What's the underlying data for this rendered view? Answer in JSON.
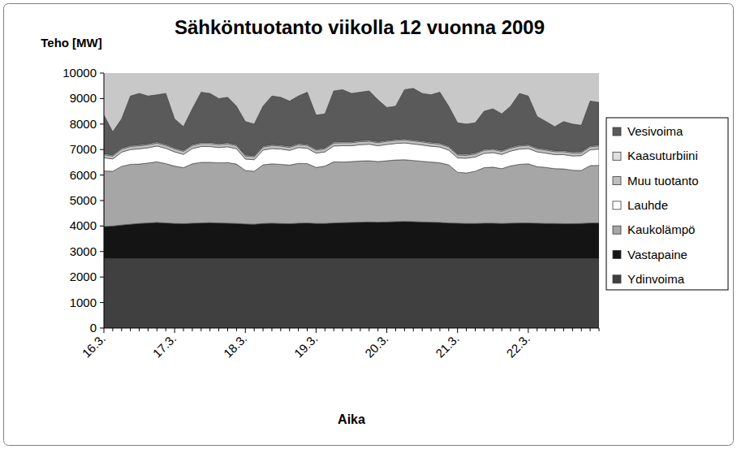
{
  "chart_data": {
    "type": "area",
    "title": "Sähköntuotanto viikolla 12 vuonna 2009",
    "y_label": "Teho [MW]",
    "x_label": "Aika",
    "stacked": true,
    "grid": false,
    "legend": "right",
    "categories": [
      "16.3.",
      null,
      null,
      null,
      null,
      null,
      null,
      null,
      "17.3.",
      null,
      null,
      null,
      null,
      null,
      null,
      null,
      "18.3.",
      null,
      null,
      null,
      null,
      null,
      null,
      null,
      "19.3.",
      null,
      null,
      null,
      null,
      null,
      null,
      null,
      "20.3.",
      null,
      null,
      null,
      null,
      null,
      null,
      null,
      "21.3.",
      null,
      null,
      null,
      null,
      null,
      null,
      null,
      "22.3.",
      null,
      null,
      null,
      null,
      null,
      null,
      null,
      null
    ],
    "ylim": [
      0,
      10000
    ],
    "yticks": [
      0,
      1000,
      2000,
      3000,
      4000,
      5000,
      6000,
      7000,
      8000,
      9000,
      10000
    ],
    "series": [
      {
        "name": "Ydinvoima",
        "color": "#404040",
        "values": [
          2720,
          2720,
          2720,
          2720,
          2720,
          2720,
          2720,
          2720,
          2720,
          2720,
          2720,
          2720,
          2720,
          2720,
          2720,
          2720,
          2720,
          2720,
          2720,
          2720,
          2720,
          2720,
          2720,
          2720,
          2720,
          2720,
          2720,
          2720,
          2720,
          2720,
          2720,
          2720,
          2720,
          2720,
          2720,
          2720,
          2720,
          2720,
          2720,
          2720,
          2720,
          2720,
          2720,
          2720,
          2720,
          2720,
          2720,
          2720,
          2720,
          2720,
          2720,
          2720,
          2720,
          2720,
          2720,
          2720,
          2720
        ]
      },
      {
        "name": "Vastapaine",
        "color": "#141414",
        "values": [
          1260,
          1280,
          1320,
          1350,
          1380,
          1400,
          1420,
          1400,
          1380,
          1370,
          1390,
          1400,
          1410,
          1400,
          1390,
          1380,
          1360,
          1350,
          1380,
          1390,
          1380,
          1370,
          1390,
          1400,
          1380,
          1380,
          1400,
          1410,
          1420,
          1430,
          1440,
          1430,
          1440,
          1450,
          1460,
          1450,
          1440,
          1430,
          1420,
          1400,
          1390,
          1380,
          1380,
          1390,
          1390,
          1380,
          1390,
          1400,
          1400,
          1390,
          1380,
          1380,
          1370,
          1370,
          1380,
          1400,
          1400
        ]
      },
      {
        "name": "Kaukolämpö",
        "color": "#a6a6a6",
        "values": [
          2180,
          2150,
          2300,
          2350,
          2330,
          2350,
          2380,
          2330,
          2250,
          2200,
          2330,
          2380,
          2370,
          2360,
          2380,
          2330,
          2100,
          2080,
          2300,
          2330,
          2320,
          2300,
          2350,
          2330,
          2200,
          2250,
          2400,
          2380,
          2390,
          2400,
          2400,
          2380,
          2400,
          2420,
          2420,
          2400,
          2380,
          2360,
          2340,
          2280,
          2000,
          1980,
          2050,
          2180,
          2200,
          2150,
          2250,
          2300,
          2320,
          2220,
          2200,
          2150,
          2150,
          2100,
          2080,
          2250,
          2260
        ]
      },
      {
        "name": "Lauhde",
        "color": "#ffffff",
        "values": [
          520,
          480,
          560,
          580,
          600,
          600,
          620,
          600,
          560,
          520,
          600,
          620,
          620,
          600,
          620,
          600,
          450,
          450,
          580,
          600,
          600,
          580,
          620,
          600,
          560,
          560,
          620,
          640,
          620,
          640,
          650,
          620,
          640,
          650,
          660,
          650,
          640,
          620,
          620,
          580,
          560,
          580,
          560,
          560,
          570,
          560,
          580,
          600,
          600,
          580,
          560,
          550,
          560,
          560,
          580,
          620,
          640
        ]
      },
      {
        "name": "Muu tuotanto",
        "color": "#bfbfbf",
        "values": [
          120,
          120,
          120,
          120,
          120,
          120,
          120,
          120,
          120,
          120,
          120,
          120,
          120,
          120,
          120,
          120,
          120,
          120,
          120,
          120,
          120,
          120,
          120,
          120,
          120,
          120,
          120,
          120,
          120,
          120,
          120,
          120,
          120,
          120,
          120,
          120,
          120,
          120,
          120,
          120,
          120,
          120,
          120,
          120,
          120,
          120,
          120,
          120,
          120,
          120,
          120,
          120,
          120,
          120,
          120,
          120,
          120
        ]
      },
      {
        "name": "Kaasuturbiini",
        "color": "#e0e0e0",
        "values": [
          40,
          40,
          40,
          40,
          40,
          40,
          40,
          40,
          40,
          40,
          40,
          40,
          40,
          40,
          40,
          40,
          40,
          40,
          40,
          40,
          40,
          40,
          40,
          40,
          40,
          40,
          40,
          40,
          40,
          40,
          40,
          40,
          40,
          40,
          40,
          40,
          40,
          40,
          40,
          40,
          40,
          40,
          40,
          40,
          40,
          40,
          40,
          40,
          40,
          40,
          40,
          40,
          40,
          40,
          40,
          40,
          40
        ]
      },
      {
        "name": "Vesivoima",
        "color": "#5a5a5a",
        "values": [
          1510,
          910,
          1140,
          1940,
          2010,
          1870,
          1850,
          1990,
          1130,
          930,
          1400,
          1970,
          1920,
          1760,
          1780,
          1510,
          1310,
          1240,
          1560,
          1900,
          1870,
          1770,
          1860,
          2040,
          1330,
          1330,
          2000,
          2040,
          1890,
          1900,
          1930,
          1640,
          1290,
          1300,
          1930,
          2020,
          1860,
          1860,
          1990,
          1560,
          1220,
          1180,
          1180,
          1490,
          1560,
          1430,
          1600,
          2020,
          1900,
          1230,
          1080,
          940,
          1140,
          1090,
          1030,
          1750,
          1670
        ]
      }
    ]
  }
}
